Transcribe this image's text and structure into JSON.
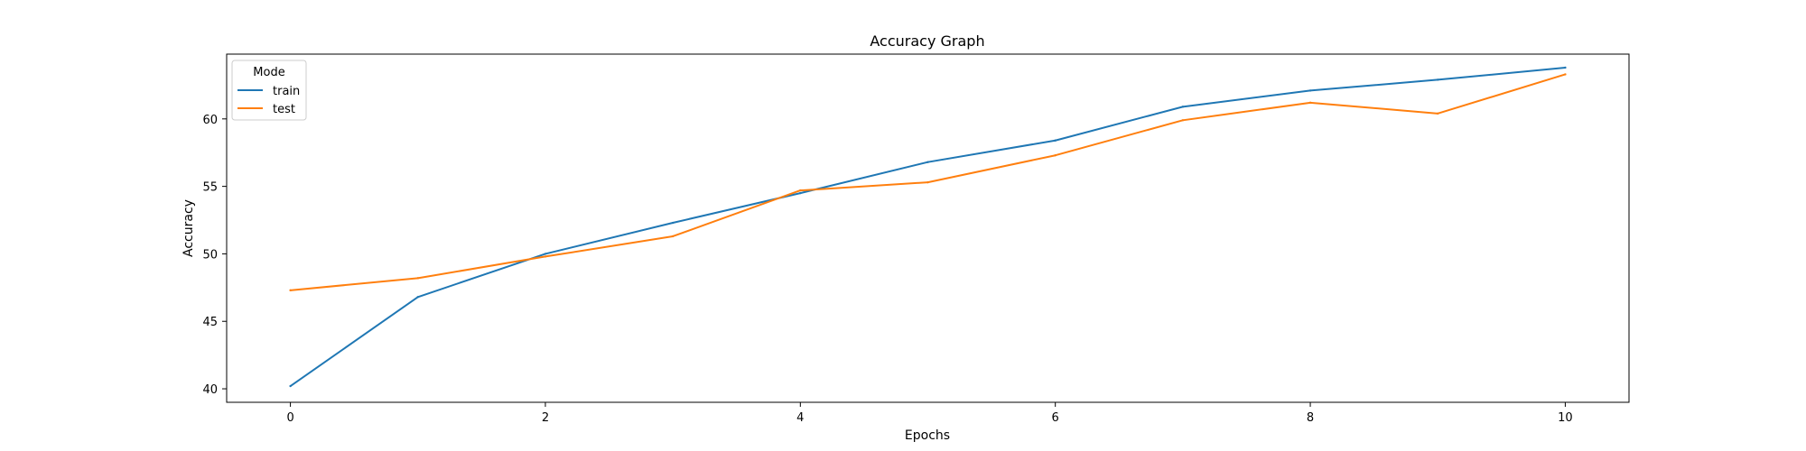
{
  "chart_data": {
    "type": "line",
    "title": "Accuracy Graph",
    "xlabel": "Epochs",
    "ylabel": "Accuracy",
    "x": [
      0,
      1,
      2,
      3,
      4,
      5,
      6,
      7,
      8,
      9,
      10
    ],
    "xlim": [
      -0.5,
      10.5
    ],
    "ylim": [
      39,
      64.8
    ],
    "xticks": [
      0,
      2,
      4,
      6,
      8,
      10
    ],
    "yticks": [
      40,
      45,
      50,
      55,
      60
    ],
    "grid": false,
    "legend": {
      "title": "Mode",
      "placement": "top-left"
    },
    "series": [
      {
        "name": "train",
        "color": "#1f77b4",
        "values": [
          40.2,
          46.8,
          50.0,
          52.3,
          54.5,
          56.8,
          58.4,
          60.9,
          62.1,
          62.9,
          63.8
        ]
      },
      {
        "name": "test",
        "color": "#ff7f0e",
        "values": [
          47.3,
          48.2,
          49.8,
          51.3,
          54.7,
          55.3,
          57.3,
          59.9,
          61.2,
          60.4,
          63.3
        ]
      }
    ]
  }
}
